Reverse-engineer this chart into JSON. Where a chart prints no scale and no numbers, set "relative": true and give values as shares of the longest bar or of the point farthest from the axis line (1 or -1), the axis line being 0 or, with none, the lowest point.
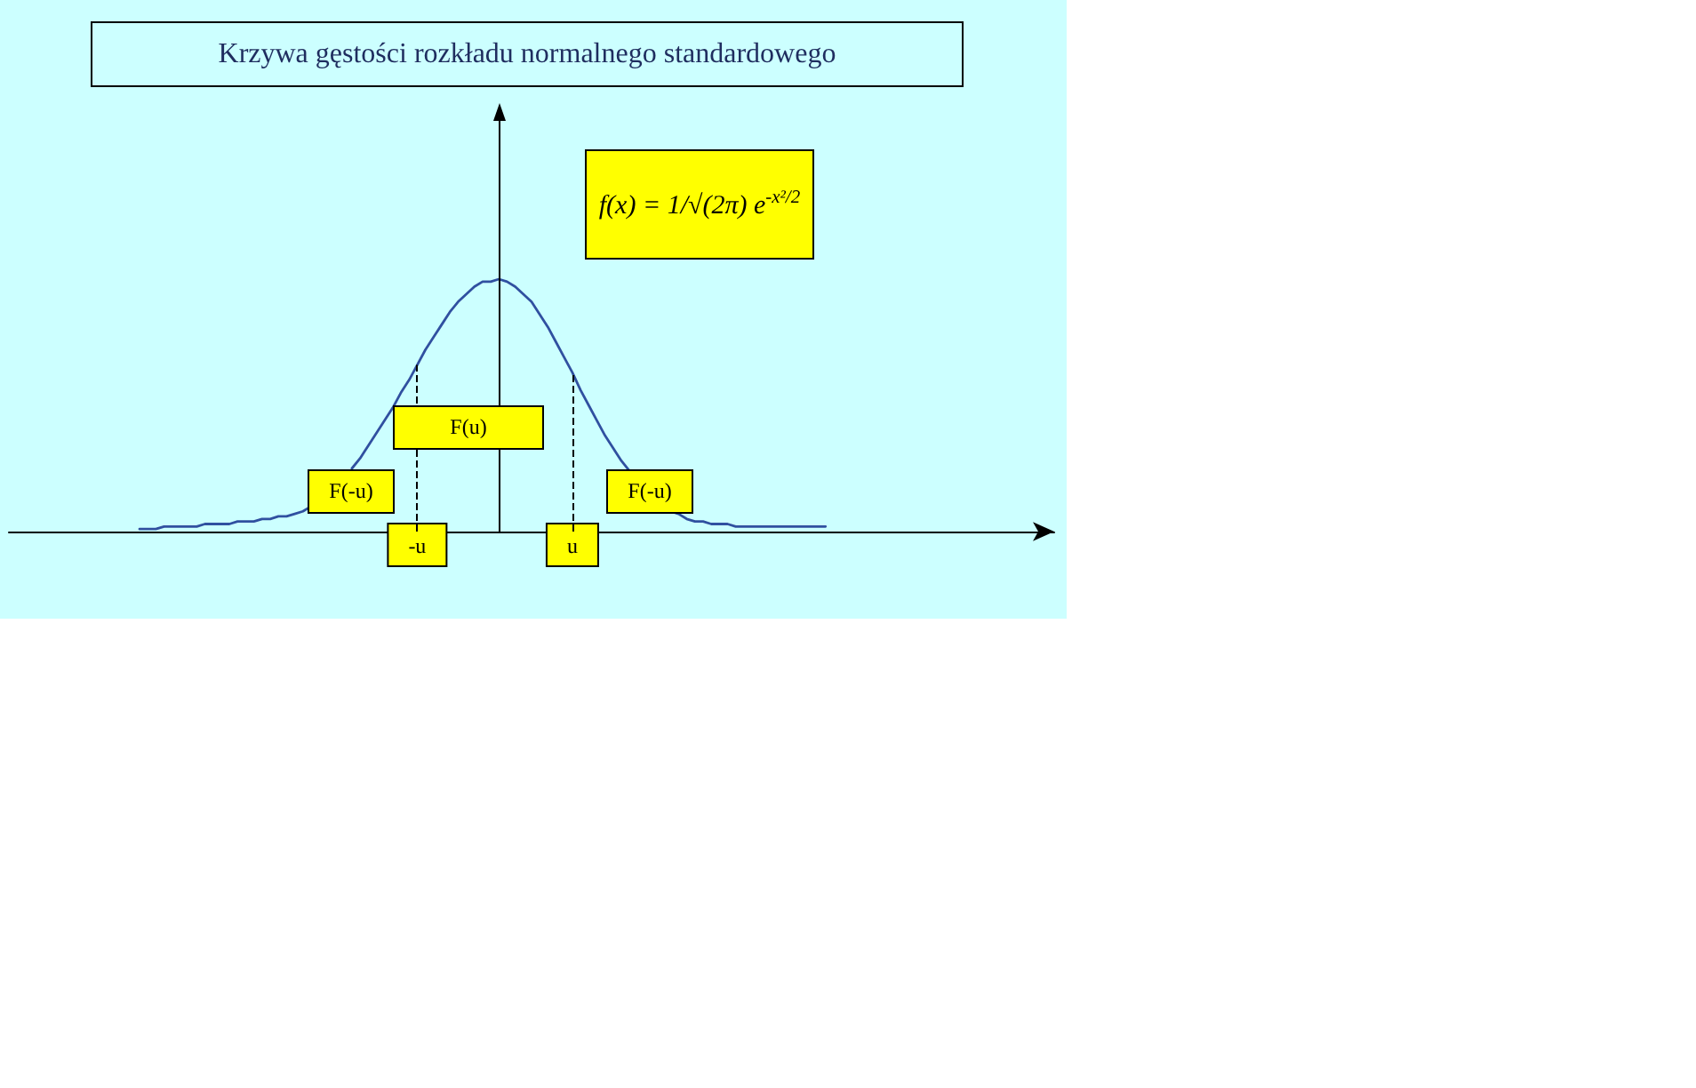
{
  "chart_data": {
    "type": "line",
    "title": "Krzywa gęstości rozkładu normalnego standardowego",
    "relative": true,
    "color": "#3050a0",
    "categories": [
      null,
      null,
      null,
      null,
      null,
      null,
      null,
      null,
      null,
      null,
      null,
      null,
      null,
      null,
      null,
      null,
      null,
      null,
      null,
      null,
      null,
      null,
      null,
      null,
      null,
      null,
      null,
      null,
      null,
      null,
      null,
      null,
      null,
      null,
      null,
      null,
      null,
      null,
      null,
      null,
      null,
      null,
      null,
      null,
      null,
      null,
      null,
      null,
      null,
      null,
      "-u",
      null,
      null,
      null,
      null,
      null,
      null,
      null,
      null,
      null,
      null,
      null,
      null,
      null,
      null,
      null,
      null,
      null,
      null,
      "u",
      null,
      null,
      null,
      null,
      null,
      null,
      null,
      null,
      null,
      null,
      null,
      null,
      null,
      null,
      null,
      null,
      null,
      null,
      null,
      null,
      null,
      null,
      null,
      null,
      null,
      null,
      null,
      null,
      null,
      null,
      null,
      null,
      null,
      null,
      null,
      null,
      null,
      null,
      null,
      null,
      null,
      null,
      null,
      null,
      null,
      null,
      null,
      null,
      null,
      null,
      null,
      null,
      null,
      null,
      null,
      null,
      null,
      null,
      null
    ],
    "values": [
      null,
      null,
      null,
      null,
      null,
      null,
      null,
      null,
      null,
      null,
      null,
      null,
      null,
      null,
      null,
      null,
      0.01,
      0.01,
      0.01,
      0.02,
      0.02,
      0.02,
      0.02,
      0.02,
      0.03,
      0.03,
      0.03,
      0.03,
      0.04,
      0.04,
      0.04,
      0.05,
      0.05,
      0.06,
      0.06,
      0.07,
      0.08,
      0.1,
      null,
      null,
      null,
      null,
      0.25,
      0.29,
      0.34,
      0.39,
      0.44,
      0.49,
      0.55,
      0.6,
      0.66,
      0.72,
      0.77,
      0.82,
      0.87,
      0.91,
      0.94,
      0.97,
      0.99,
      0.99,
      1,
      0.99,
      0.97,
      0.94,
      0.91,
      0.86,
      0.81,
      0.75,
      0.69,
      0.63,
      0.56,
      0.5,
      0.44,
      0.38,
      0.33,
      0.28,
      0.24,
      null,
      null,
      null,
      null,
      0.08,
      0.07,
      0.05,
      0.04,
      0.04,
      0.03,
      0.03,
      0.03,
      0.02,
      0.02,
      0.02,
      0.02,
      0.02,
      0.02,
      0.02,
      0.02,
      0.02,
      0.02,
      0.02,
      0.02,
      null,
      null,
      null,
      null,
      null,
      null,
      null,
      null,
      null,
      null,
      null,
      null,
      null,
      null,
      null,
      null,
      null,
      null,
      null,
      null,
      null,
      null,
      null,
      null,
      null,
      null,
      null,
      null
    ],
    "ref_lines": [
      {
        "axis": "x",
        "value": "-u",
        "line_style": "dashed"
      },
      {
        "axis": "x",
        "value": "u",
        "line_style": "dashed"
      }
    ],
    "annotations": [
      "f(x) = 1/√(2π) e$^{-x²/2}$",
      "F(u)",
      "F(-u)",
      "F(-u)"
    ]
  }
}
